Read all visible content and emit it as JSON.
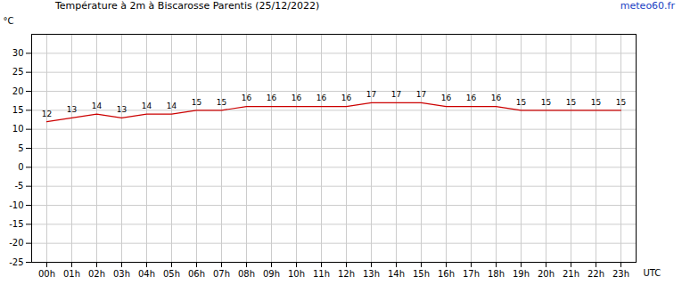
{
  "chart_data": {
    "type": "line",
    "title": "Température à 2m à Biscarosse Parentis (25/12/2022)",
    "source": "meteo60.fr",
    "y_label": "°C",
    "x_label": "UTC",
    "categories": [
      "00h",
      "01h",
      "02h",
      "03h",
      "04h",
      "05h",
      "06h",
      "07h",
      "08h",
      "09h",
      "10h",
      "11h",
      "12h",
      "13h",
      "14h",
      "15h",
      "16h",
      "17h",
      "18h",
      "19h",
      "20h",
      "21h",
      "22h",
      "23h"
    ],
    "values": [
      12,
      13,
      14,
      13,
      14,
      14,
      15,
      15,
      16,
      16,
      16,
      16,
      16,
      17,
      17,
      17,
      16,
      16,
      16,
      15,
      15,
      15,
      15,
      15
    ],
    "color": "#cc0000",
    "ylim": [
      -25,
      35
    ],
    "yticks": [
      -25,
      -20,
      -15,
      -10,
      -5,
      0,
      5,
      10,
      15,
      20,
      25,
      30
    ],
    "grid": true,
    "data_labels": true
  }
}
